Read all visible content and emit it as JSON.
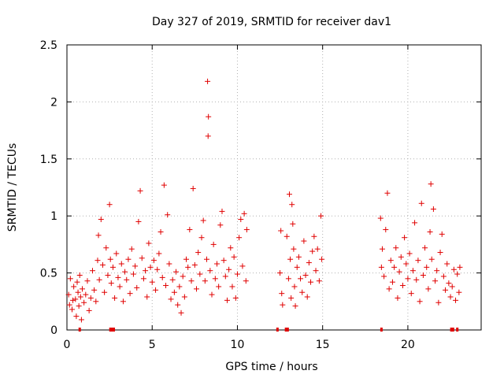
{
  "chart_data": {
    "type": "scatter",
    "title": "Day 327 of 2019, SRMTID for receiver dav1",
    "xlabel": "GPS time / hours",
    "ylabel": "SRMTID / TECUs",
    "xlim": [
      0,
      24.3
    ],
    "ylim": [
      0,
      2.5
    ],
    "xticks": [
      0,
      5,
      10,
      15,
      20
    ],
    "xtick_labels": [
      "0",
      "5",
      "10",
      "15",
      "20"
    ],
    "yticks": [
      0,
      0.5,
      1,
      1.5,
      2,
      2.5
    ],
    "ytick_labels": [
      "0",
      "0.5",
      "1",
      "1.5",
      "2",
      "2.5"
    ],
    "grid": true,
    "marker": "+",
    "color": "#e00000",
    "series": [
      {
        "name": "dav1",
        "points": [
          [
            0.1,
            0.31
          ],
          [
            0.15,
            0.22
          ],
          [
            0.2,
            0.45
          ],
          [
            0.3,
            0.18
          ],
          [
            0.35,
            0.26
          ],
          [
            0.4,
            0.38
          ],
          [
            0.5,
            0.27
          ],
          [
            0.55,
            0.12
          ],
          [
            0.6,
            0.42
          ],
          [
            0.65,
            0.33
          ],
          [
            0.7,
            0.21
          ],
          [
            0.75,
            0.48
          ],
          [
            0.8,
            0.29
          ],
          [
            0.85,
            0.09
          ],
          [
            0.9,
            0.36
          ],
          [
            1.0,
            0.24
          ],
          [
            1.1,
            0.31
          ],
          [
            1.2,
            0.43
          ],
          [
            1.3,
            0.17
          ],
          [
            1.4,
            0.28
          ],
          [
            1.5,
            0.52
          ],
          [
            1.6,
            0.35
          ],
          [
            1.7,
            0.25
          ],
          [
            1.8,
            0.61
          ],
          [
            1.85,
            0.83
          ],
          [
            1.9,
            0.44
          ],
          [
            2.0,
            0.97
          ],
          [
            2.1,
            0.57
          ],
          [
            2.2,
            0.33
          ],
          [
            2.3,
            0.72
          ],
          [
            2.4,
            0.48
          ],
          [
            2.5,
            1.1
          ],
          [
            2.55,
            0.62
          ],
          [
            2.6,
            0.41
          ],
          [
            2.7,
            0.55
          ],
          [
            2.8,
            0.28
          ],
          [
            2.9,
            0.67
          ],
          [
            3.0,
            0.46
          ],
          [
            3.1,
            0.38
          ],
          [
            3.2,
            0.58
          ],
          [
            3.3,
            0.25
          ],
          [
            3.4,
            0.51
          ],
          [
            3.5,
            0.44
          ],
          [
            3.6,
            0.62
          ],
          [
            3.7,
            0.32
          ],
          [
            3.8,
            0.71
          ],
          [
            3.9,
            0.49
          ],
          [
            4.0,
            0.56
          ],
          [
            4.1,
            0.37
          ],
          [
            4.2,
            0.95
          ],
          [
            4.3,
            1.22
          ],
          [
            4.4,
            0.63
          ],
          [
            4.5,
            0.45
          ],
          [
            4.6,
            0.52
          ],
          [
            4.7,
            0.29
          ],
          [
            4.8,
            0.76
          ],
          [
            4.9,
            0.55
          ],
          [
            5.0,
            0.42
          ],
          [
            5.1,
            0.61
          ],
          [
            5.2,
            0.35
          ],
          [
            5.3,
            0.53
          ],
          [
            5.4,
            0.67
          ],
          [
            5.5,
            0.86
          ],
          [
            5.6,
            0.46
          ],
          [
            5.7,
            1.27
          ],
          [
            5.8,
            0.39
          ],
          [
            5.9,
            1.01
          ],
          [
            6.0,
            0.58
          ],
          [
            6.1,
            0.27
          ],
          [
            6.2,
            0.44
          ],
          [
            6.3,
            0.33
          ],
          [
            6.4,
            0.51
          ],
          [
            6.5,
            0.22
          ],
          [
            6.6,
            0.38
          ],
          [
            6.7,
            0.15
          ],
          [
            6.8,
            0.47
          ],
          [
            6.9,
            0.29
          ],
          [
            7.0,
            0.62
          ],
          [
            7.1,
            0.55
          ],
          [
            7.2,
            0.88
          ],
          [
            7.3,
            0.43
          ],
          [
            7.4,
            1.24
          ],
          [
            7.5,
            0.57
          ],
          [
            7.6,
            0.36
          ],
          [
            7.7,
            0.68
          ],
          [
            7.8,
            0.49
          ],
          [
            7.9,
            0.81
          ],
          [
            8.0,
            0.96
          ],
          [
            8.1,
            0.43
          ],
          [
            8.2,
            0.62
          ],
          [
            8.25,
            2.18
          ],
          [
            8.3,
            1.87
          ],
          [
            8.28,
            1.7
          ],
          [
            8.4,
            0.52
          ],
          [
            8.5,
            0.31
          ],
          [
            8.6,
            0.75
          ],
          [
            8.7,
            0.45
          ],
          [
            8.8,
            0.58
          ],
          [
            8.9,
            0.38
          ],
          [
            9.0,
            0.92
          ],
          [
            9.1,
            1.04
          ],
          [
            9.2,
            0.61
          ],
          [
            9.3,
            0.47
          ],
          [
            9.4,
            0.26
          ],
          [
            9.5,
            0.53
          ],
          [
            9.6,
            0.72
          ],
          [
            9.7,
            0.38
          ],
          [
            9.8,
            0.64
          ],
          [
            9.9,
            0.28
          ],
          [
            10.0,
            0.49
          ],
          [
            10.1,
            0.81
          ],
          [
            10.2,
            0.97
          ],
          [
            10.3,
            0.56
          ],
          [
            10.4,
            1.02
          ],
          [
            10.5,
            0.43
          ],
          [
            10.55,
            0.88
          ],
          [
            12.5,
            0.5
          ],
          [
            12.55,
            0.87
          ],
          [
            12.6,
            0.32
          ],
          [
            12.65,
            0.22
          ],
          [
            12.9,
            0.82
          ],
          [
            13.0,
            0.45
          ],
          [
            13.05,
            1.19
          ],
          [
            13.1,
            0.62
          ],
          [
            13.15,
            0.28
          ],
          [
            13.2,
            1.1
          ],
          [
            13.25,
            0.93
          ],
          [
            13.3,
            0.71
          ],
          [
            13.35,
            0.38
          ],
          [
            13.4,
            0.21
          ],
          [
            13.5,
            0.55
          ],
          [
            13.6,
            0.64
          ],
          [
            13.7,
            0.45
          ],
          [
            13.8,
            0.33
          ],
          [
            13.9,
            0.78
          ],
          [
            14.0,
            0.48
          ],
          [
            14.1,
            0.29
          ],
          [
            14.2,
            0.59
          ],
          [
            14.3,
            0.42
          ],
          [
            14.4,
            0.69
          ],
          [
            14.5,
            0.82
          ],
          [
            14.6,
            0.52
          ],
          [
            14.7,
            0.71
          ],
          [
            14.8,
            0.43
          ],
          [
            14.9,
            1.0
          ],
          [
            14.95,
            0.62
          ],
          [
            18.4,
            0.98
          ],
          [
            18.45,
            0.55
          ],
          [
            18.5,
            0.71
          ],
          [
            18.6,
            0.47
          ],
          [
            18.7,
            0.88
          ],
          [
            18.8,
            1.2
          ],
          [
            18.9,
            0.36
          ],
          [
            19.0,
            0.61
          ],
          [
            19.1,
            0.42
          ],
          [
            19.2,
            0.55
          ],
          [
            19.3,
            0.72
          ],
          [
            19.4,
            0.28
          ],
          [
            19.5,
            0.51
          ],
          [
            19.6,
            0.64
          ],
          [
            19.7,
            0.39
          ],
          [
            19.8,
            0.81
          ],
          [
            19.9,
            0.58
          ],
          [
            20.0,
            0.45
          ],
          [
            20.1,
            0.67
          ],
          [
            20.2,
            0.32
          ],
          [
            20.3,
            0.52
          ],
          [
            20.4,
            0.94
          ],
          [
            20.5,
            0.44
          ],
          [
            20.6,
            0.61
          ],
          [
            20.7,
            0.25
          ],
          [
            20.8,
            1.11
          ],
          [
            20.9,
            0.48
          ],
          [
            21.0,
            0.72
          ],
          [
            21.1,
            0.55
          ],
          [
            21.2,
            0.36
          ],
          [
            21.3,
            0.86
          ],
          [
            21.35,
            1.28
          ],
          [
            21.4,
            0.62
          ],
          [
            21.5,
            1.06
          ],
          [
            21.6,
            0.43
          ],
          [
            21.7,
            0.52
          ],
          [
            21.8,
            0.24
          ],
          [
            21.9,
            0.68
          ],
          [
            22.0,
            0.84
          ],
          [
            22.1,
            0.47
          ],
          [
            22.2,
            0.35
          ],
          [
            22.3,
            0.58
          ],
          [
            22.4,
            0.41
          ],
          [
            22.5,
            0.29
          ],
          [
            22.6,
            0.38
          ],
          [
            22.7,
            0.53
          ],
          [
            22.8,
            0.26
          ],
          [
            22.9,
            0.49
          ],
          [
            23.0,
            0.33
          ],
          [
            23.05,
            0.55
          ]
        ]
      }
    ],
    "baseline_markers_x": [
      0.75,
      2.55,
      2.65,
      2.75,
      12.35,
      12.85,
      12.95,
      18.45,
      22.55,
      22.65,
      22.9
    ]
  }
}
